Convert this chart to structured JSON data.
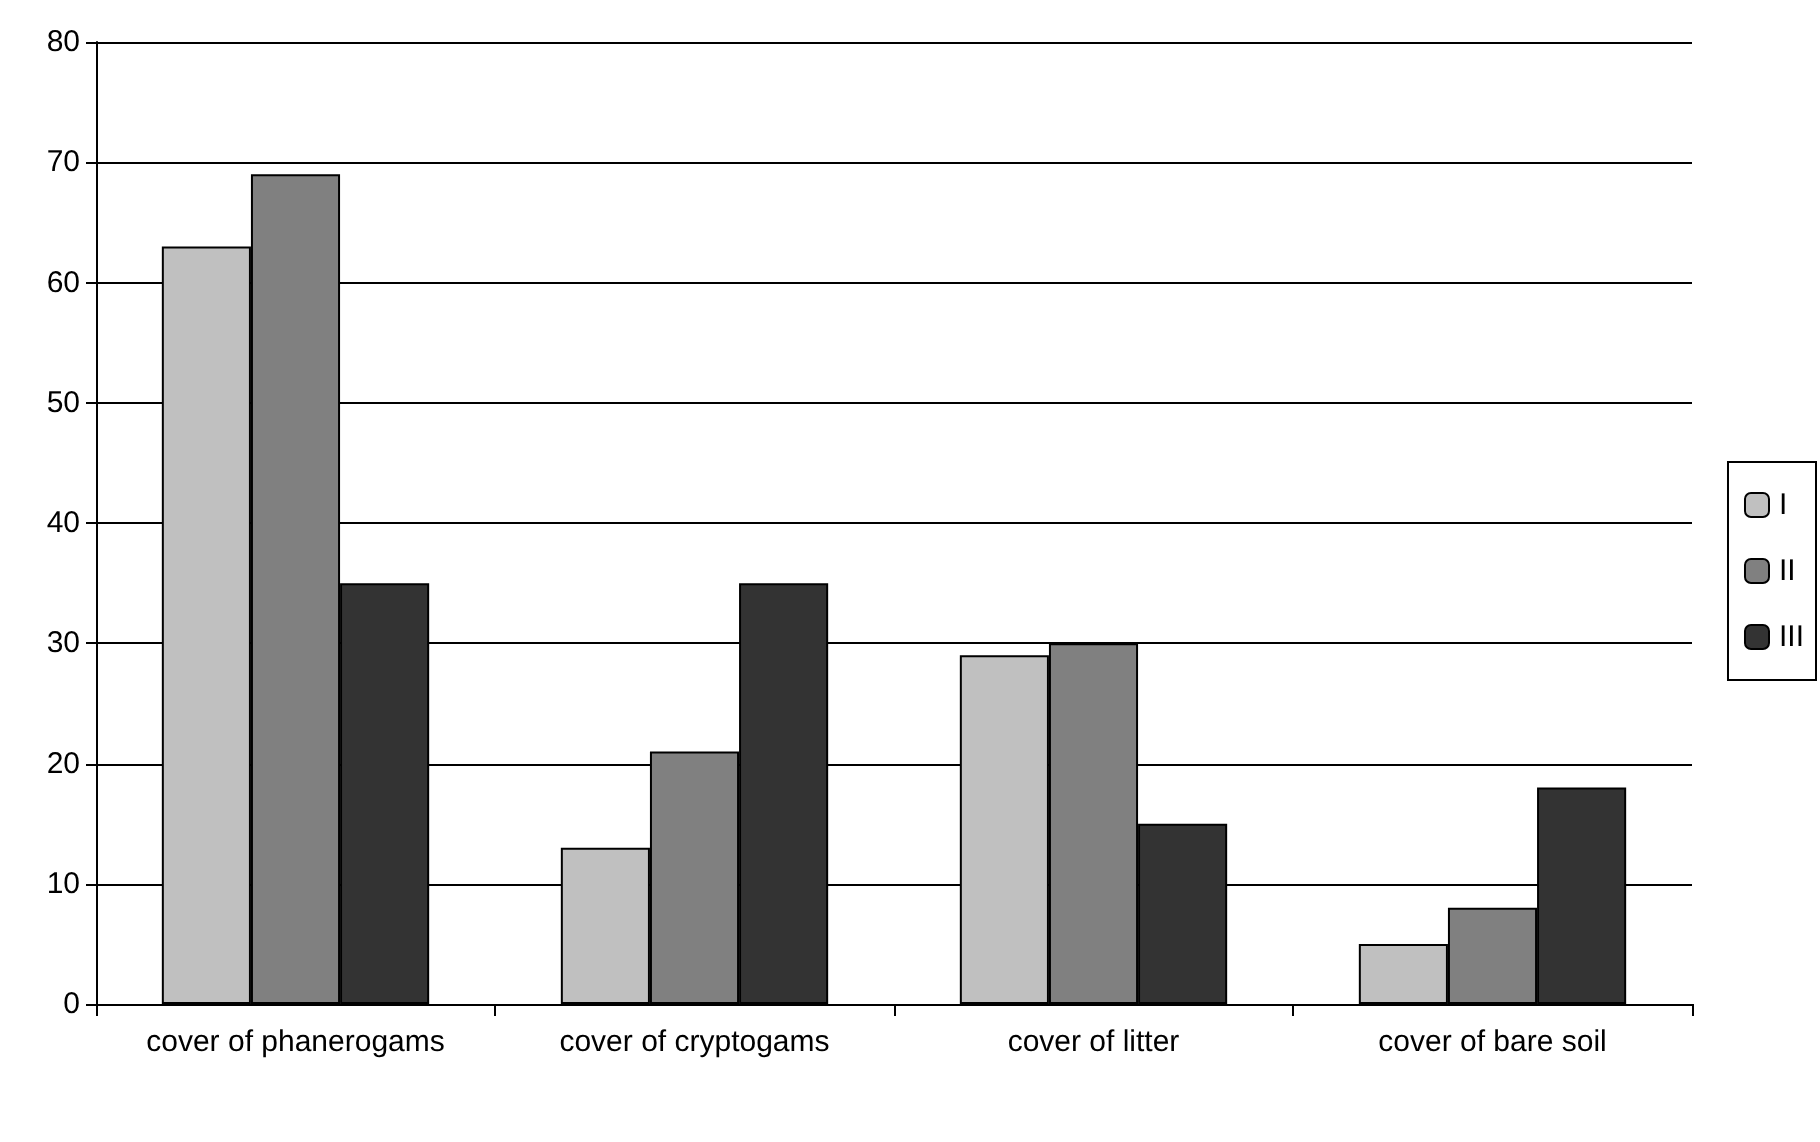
{
  "chart_data": {
    "type": "bar",
    "categories": [
      "cover of phanerogams",
      "cover of cryptogams",
      "cover of litter",
      "cover of bare soil"
    ],
    "series": [
      {
        "name": "I",
        "color": "#c0c0c0",
        "values": [
          63,
          13,
          29,
          5
        ]
      },
      {
        "name": "II",
        "color": "#808080",
        "values": [
          69,
          21,
          30,
          8
        ]
      },
      {
        "name": "III",
        "color": "#333333",
        "values": [
          35,
          35,
          15,
          18
        ]
      }
    ],
    "ylim": [
      0,
      80
    ],
    "yticks": [
      0,
      10,
      20,
      30,
      40,
      50,
      60,
      70,
      80
    ],
    "grid": "y",
    "legend": "right"
  }
}
